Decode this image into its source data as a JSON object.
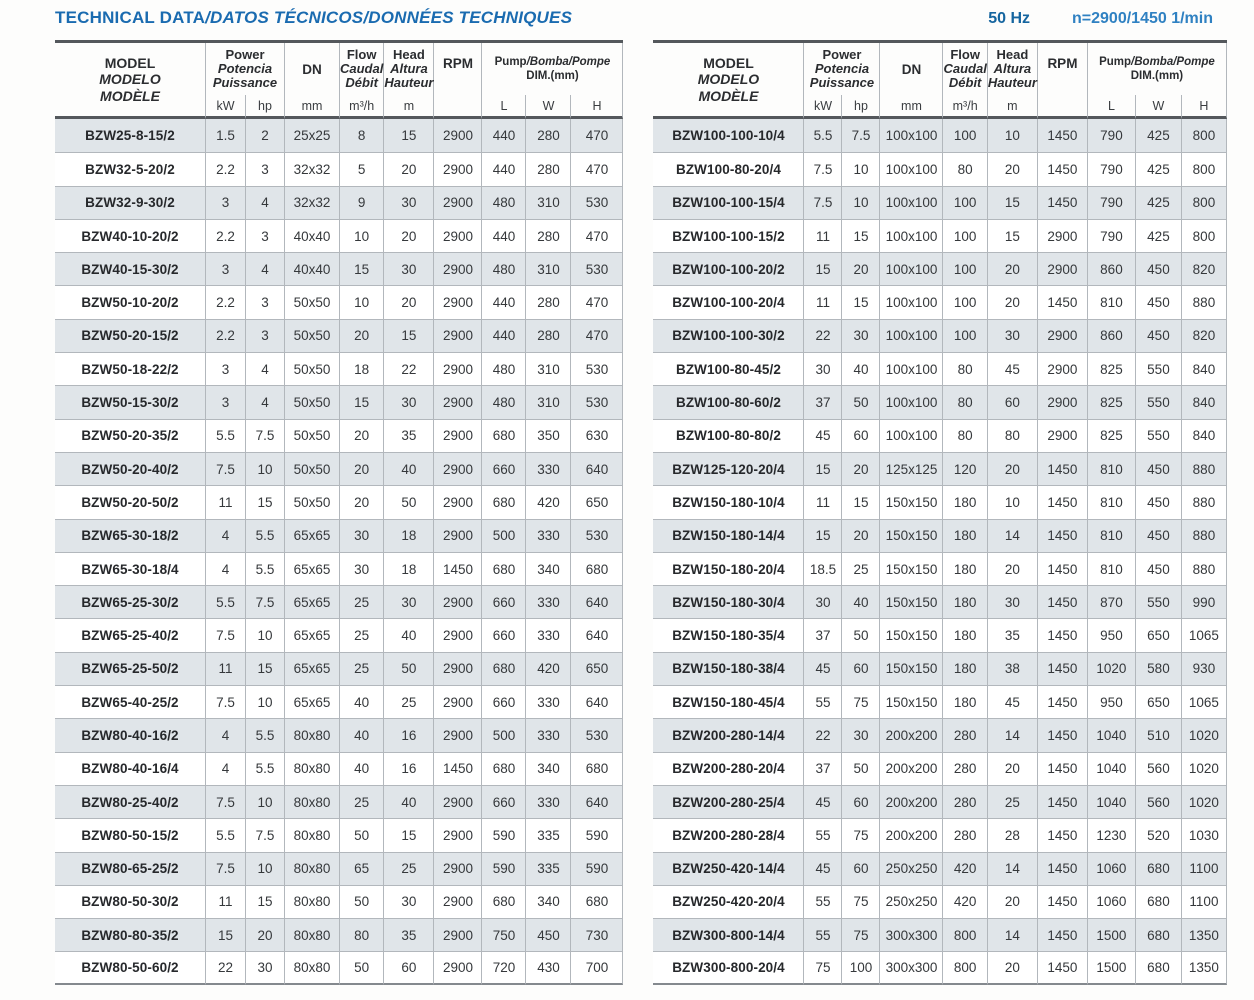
{
  "page": {
    "title_en": "TECHNICAL DATA",
    "title_rest": "/DATOS TÉCNICOS/DONNÉES TECHNIQUES",
    "frequency": "50 Hz",
    "speed": "n=2900/1450 1/min",
    "title_color": "#1a6bb0",
    "frequency_color": "#15659f",
    "speed_color": "#2f81c2",
    "row_shade_color": "#e0e5e9"
  },
  "header": {
    "model": [
      "MODEL",
      "MODELO",
      "MODÈLE"
    ],
    "power": [
      "Power",
      "Potencia",
      "Puissance"
    ],
    "dn": "DN",
    "flow": [
      "Flow",
      "Caudal",
      "Débit"
    ],
    "head": [
      "Head",
      "Altura",
      "Hauteur"
    ],
    "rpm": "RPM",
    "pump_en": "Pump",
    "pump_rest": "/Bomba/Pompe",
    "dim": "DIM.(mm)",
    "units": {
      "kw": "kW",
      "hp": "hp",
      "mm": "mm",
      "flow": "m³/h",
      "head": "m",
      "rpm": "",
      "l": "L",
      "w": "W",
      "h": "H"
    }
  },
  "tables": {
    "left": {
      "rows": [
        [
          "BZW25-8-15/2",
          "1.5",
          "2",
          "25x25",
          "8",
          "15",
          "2900",
          "440",
          "280",
          "470"
        ],
        [
          "BZW32-5-20/2",
          "2.2",
          "3",
          "32x32",
          "5",
          "20",
          "2900",
          "440",
          "280",
          "470"
        ],
        [
          "BZW32-9-30/2",
          "3",
          "4",
          "32x32",
          "9",
          "30",
          "2900",
          "480",
          "310",
          "530"
        ],
        [
          "BZW40-10-20/2",
          "2.2",
          "3",
          "40x40",
          "10",
          "20",
          "2900",
          "440",
          "280",
          "470"
        ],
        [
          "BZW40-15-30/2",
          "3",
          "4",
          "40x40",
          "15",
          "30",
          "2900",
          "480",
          "310",
          "530"
        ],
        [
          "BZW50-10-20/2",
          "2.2",
          "3",
          "50x50",
          "10",
          "20",
          "2900",
          "440",
          "280",
          "470"
        ],
        [
          "BZW50-20-15/2",
          "2.2",
          "3",
          "50x50",
          "20",
          "15",
          "2900",
          "440",
          "280",
          "470"
        ],
        [
          "BZW50-18-22/2",
          "3",
          "4",
          "50x50",
          "18",
          "22",
          "2900",
          "480",
          "310",
          "530"
        ],
        [
          "BZW50-15-30/2",
          "3",
          "4",
          "50x50",
          "15",
          "30",
          "2900",
          "480",
          "310",
          "530"
        ],
        [
          "BZW50-20-35/2",
          "5.5",
          "7.5",
          "50x50",
          "20",
          "35",
          "2900",
          "680",
          "350",
          "630"
        ],
        [
          "BZW50-20-40/2",
          "7.5",
          "10",
          "50x50",
          "20",
          "40",
          "2900",
          "660",
          "330",
          "640"
        ],
        [
          "BZW50-20-50/2",
          "11",
          "15",
          "50x50",
          "20",
          "50",
          "2900",
          "680",
          "420",
          "650"
        ],
        [
          "BZW65-30-18/2",
          "4",
          "5.5",
          "65x65",
          "30",
          "18",
          "2900",
          "500",
          "330",
          "530"
        ],
        [
          "BZW65-30-18/4",
          "4",
          "5.5",
          "65x65",
          "30",
          "18",
          "1450",
          "680",
          "340",
          "680"
        ],
        [
          "BZW65-25-30/2",
          "5.5",
          "7.5",
          "65x65",
          "25",
          "30",
          "2900",
          "660",
          "330",
          "640"
        ],
        [
          "BZW65-25-40/2",
          "7.5",
          "10",
          "65x65",
          "25",
          "40",
          "2900",
          "660",
          "330",
          "640"
        ],
        [
          "BZW65-25-50/2",
          "11",
          "15",
          "65x65",
          "25",
          "50",
          "2900",
          "680",
          "420",
          "650"
        ],
        [
          "BZW65-40-25/2",
          "7.5",
          "10",
          "65x65",
          "40",
          "25",
          "2900",
          "660",
          "330",
          "640"
        ],
        [
          "BZW80-40-16/2",
          "4",
          "5.5",
          "80x80",
          "40",
          "16",
          "2900",
          "500",
          "330",
          "530"
        ],
        [
          "BZW80-40-16/4",
          "4",
          "5.5",
          "80x80",
          "40",
          "16",
          "1450",
          "680",
          "340",
          "680"
        ],
        [
          "BZW80-25-40/2",
          "7.5",
          "10",
          "80x80",
          "25",
          "40",
          "2900",
          "660",
          "330",
          "640"
        ],
        [
          "BZW80-50-15/2",
          "5.5",
          "7.5",
          "80x80",
          "50",
          "15",
          "2900",
          "590",
          "335",
          "590"
        ],
        [
          "BZW80-65-25/2",
          "7.5",
          "10",
          "80x80",
          "65",
          "25",
          "2900",
          "590",
          "335",
          "590"
        ],
        [
          "BZW80-50-30/2",
          "11",
          "15",
          "80x80",
          "50",
          "30",
          "2900",
          "680",
          "340",
          "680"
        ],
        [
          "BZW80-80-35/2",
          "15",
          "20",
          "80x80",
          "80",
          "35",
          "2900",
          "750",
          "450",
          "730"
        ],
        [
          "BZW80-50-60/2",
          "22",
          "30",
          "80x80",
          "50",
          "60",
          "2900",
          "720",
          "430",
          "700"
        ]
      ]
    },
    "right": {
      "rows": [
        [
          "BZW100-100-10/4",
          "5.5",
          "7.5",
          "100x100",
          "100",
          "10",
          "1450",
          "790",
          "425",
          "800"
        ],
        [
          "BZW100-80-20/4",
          "7.5",
          "10",
          "100x100",
          "80",
          "20",
          "1450",
          "790",
          "425",
          "800"
        ],
        [
          "BZW100-100-15/4",
          "7.5",
          "10",
          "100x100",
          "100",
          "15",
          "1450",
          "790",
          "425",
          "800"
        ],
        [
          "BZW100-100-15/2",
          "11",
          "15",
          "100x100",
          "100",
          "15",
          "2900",
          "790",
          "425",
          "800"
        ],
        [
          "BZW100-100-20/2",
          "15",
          "20",
          "100x100",
          "100",
          "20",
          "2900",
          "860",
          "450",
          "820"
        ],
        [
          "BZW100-100-20/4",
          "11",
          "15",
          "100x100",
          "100",
          "20",
          "1450",
          "810",
          "450",
          "880"
        ],
        [
          "BZW100-100-30/2",
          "22",
          "30",
          "100x100",
          "100",
          "30",
          "2900",
          "860",
          "450",
          "820"
        ],
        [
          "BZW100-80-45/2",
          "30",
          "40",
          "100x100",
          "80",
          "45",
          "2900",
          "825",
          "550",
          "840"
        ],
        [
          "BZW100-80-60/2",
          "37",
          "50",
          "100x100",
          "80",
          "60",
          "2900",
          "825",
          "550",
          "840"
        ],
        [
          "BZW100-80-80/2",
          "45",
          "60",
          "100x100",
          "80",
          "80",
          "2900",
          "825",
          "550",
          "840"
        ],
        [
          "BZW125-120-20/4",
          "15",
          "20",
          "125x125",
          "120",
          "20",
          "1450",
          "810",
          "450",
          "880"
        ],
        [
          "BZW150-180-10/4",
          "11",
          "15",
          "150x150",
          "180",
          "10",
          "1450",
          "810",
          "450",
          "880"
        ],
        [
          "BZW150-180-14/4",
          "15",
          "20",
          "150x150",
          "180",
          "14",
          "1450",
          "810",
          "450",
          "880"
        ],
        [
          "BZW150-180-20/4",
          "18.5",
          "25",
          "150x150",
          "180",
          "20",
          "1450",
          "810",
          "450",
          "880"
        ],
        [
          "BZW150-180-30/4",
          "30",
          "40",
          "150x150",
          "180",
          "30",
          "1450",
          "870",
          "550",
          "990"
        ],
        [
          "BZW150-180-35/4",
          "37",
          "50",
          "150x150",
          "180",
          "35",
          "1450",
          "950",
          "650",
          "1065"
        ],
        [
          "BZW150-180-38/4",
          "45",
          "60",
          "150x150",
          "180",
          "38",
          "1450",
          "1020",
          "580",
          "930"
        ],
        [
          "BZW150-180-45/4",
          "55",
          "75",
          "150x150",
          "180",
          "45",
          "1450",
          "950",
          "650",
          "1065"
        ],
        [
          "BZW200-280-14/4",
          "22",
          "30",
          "200x200",
          "280",
          "14",
          "1450",
          "1040",
          "510",
          "1020"
        ],
        [
          "BZW200-280-20/4",
          "37",
          "50",
          "200x200",
          "280",
          "20",
          "1450",
          "1040",
          "560",
          "1020"
        ],
        [
          "BZW200-280-25/4",
          "45",
          "60",
          "200x200",
          "280",
          "25",
          "1450",
          "1040",
          "560",
          "1020"
        ],
        [
          "BZW200-280-28/4",
          "55",
          "75",
          "200x200",
          "280",
          "28",
          "1450",
          "1230",
          "520",
          "1030"
        ],
        [
          "BZW250-420-14/4",
          "45",
          "60",
          "250x250",
          "420",
          "14",
          "1450",
          "1060",
          "680",
          "1100"
        ],
        [
          "BZW250-420-20/4",
          "55",
          "75",
          "250x250",
          "420",
          "20",
          "1450",
          "1060",
          "680",
          "1100"
        ],
        [
          "BZW300-800-14/4",
          "55",
          "75",
          "300x300",
          "800",
          "14",
          "1450",
          "1500",
          "680",
          "1350"
        ],
        [
          "BZW300-800-20/4",
          "75",
          "100",
          "300x300",
          "800",
          "20",
          "1450",
          "1500",
          "680",
          "1350"
        ]
      ]
    }
  }
}
